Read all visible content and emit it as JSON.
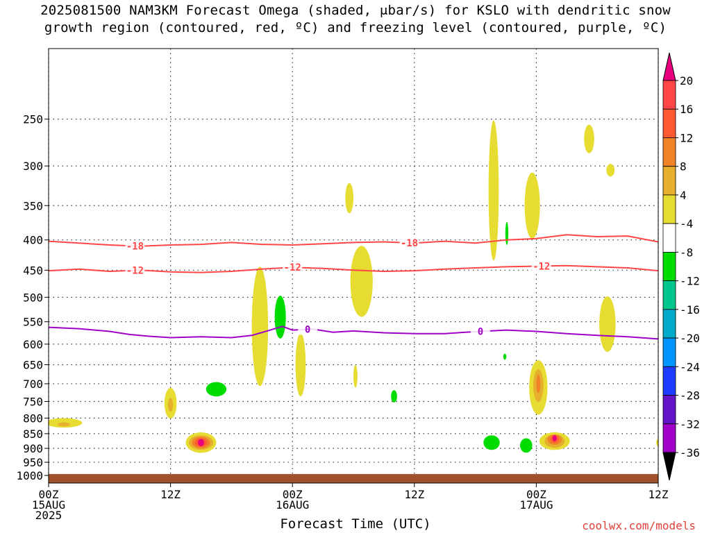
{
  "chart_data": {
    "type": "heatmap",
    "title": "2025081500 NAM3KM Forecast Omega (shaded, μbar/s) for KSLO with dendritic snow",
    "subtitle": "growth region (contoured, red, ºC) and freezing level (contoured, purple, ºC)",
    "xlabel": "Forecast Time (UTC)",
    "ylabel": "",
    "xlim": [
      0,
      60
    ],
    "ylim": [
      1030,
      190
    ],
    "y_scale": "log-pressure",
    "grid": true,
    "x_ticks": [
      {
        "hour": 0,
        "lines": [
          "00Z",
          "15AUG",
          "2025"
        ]
      },
      {
        "hour": 12,
        "lines": [
          "12Z"
        ]
      },
      {
        "hour": 24,
        "lines": [
          "00Z",
          "16AUG"
        ]
      },
      {
        "hour": 36,
        "lines": [
          "12Z"
        ]
      },
      {
        "hour": 48,
        "lines": [
          "00Z",
          "17AUG"
        ]
      },
      {
        "hour": 60,
        "lines": [
          "12Z"
        ]
      }
    ],
    "y_ticks": [
      250,
      300,
      350,
      400,
      450,
      500,
      550,
      600,
      650,
      700,
      750,
      800,
      850,
      900,
      950,
      1000
    ],
    "colorbar": {
      "labels": [
        "20",
        "16",
        "12",
        "8",
        "4",
        "-4",
        "-8",
        "-12",
        "-16",
        "-20",
        "-24",
        "-28",
        "-32",
        "-36"
      ],
      "colors": [
        "#e6007e",
        "#ff4646",
        "#ff5a32",
        "#f08228",
        "#e6af2d",
        "#e6dc32",
        "#ffffff",
        "#00dc00",
        "#00c88c",
        "#00aac8",
        "#0096ff",
        "#1e3cff",
        "#6414c8",
        "#a000c8",
        "#9e9e9e",
        "#000000"
      ]
    },
    "contours": [
      {
        "label": "-18",
        "color": "#ff4646",
        "points": [
          [
            0,
            402
          ],
          [
            3,
            405
          ],
          [
            6,
            408
          ],
          [
            9,
            410
          ],
          [
            12,
            408
          ],
          [
            15,
            407
          ],
          [
            18,
            404
          ],
          [
            21,
            407
          ],
          [
            24,
            408
          ],
          [
            27,
            406
          ],
          [
            30,
            404
          ],
          [
            33,
            403
          ],
          [
            36,
            405
          ],
          [
            39,
            402
          ],
          [
            42,
            405
          ],
          [
            45,
            400
          ],
          [
            48,
            398
          ],
          [
            51,
            392
          ],
          [
            54,
            395
          ],
          [
            57,
            394
          ],
          [
            60,
            403
          ]
        ],
        "label_positions": [
          8.5,
          35.5
        ]
      },
      {
        "label": "-12",
        "color": "#ff4646",
        "points": [
          [
            0,
            451
          ],
          [
            3,
            448
          ],
          [
            6,
            452
          ],
          [
            9,
            450
          ],
          [
            12,
            453
          ],
          [
            15,
            454
          ],
          [
            18,
            452
          ],
          [
            21,
            448
          ],
          [
            24,
            445
          ],
          [
            27,
            447
          ],
          [
            30,
            450
          ],
          [
            33,
            452
          ],
          [
            36,
            451
          ],
          [
            39,
            448
          ],
          [
            42,
            446
          ],
          [
            45,
            444
          ],
          [
            48,
            443
          ],
          [
            51,
            442
          ],
          [
            54,
            444
          ],
          [
            57,
            446
          ],
          [
            60,
            451
          ]
        ],
        "label_positions": [
          8.5,
          24,
          48.5
        ]
      },
      {
        "label": "0",
        "color": "#a000c8",
        "points": [
          [
            0,
            562
          ],
          [
            3,
            565
          ],
          [
            6,
            571
          ],
          [
            8,
            578
          ],
          [
            10,
            582
          ],
          [
            12,
            585
          ],
          [
            15,
            583
          ],
          [
            18,
            585
          ],
          [
            20,
            580
          ],
          [
            21.5,
            570
          ],
          [
            23,
            560
          ],
          [
            24,
            568
          ],
          [
            26,
            566
          ],
          [
            28,
            573
          ],
          [
            30,
            570
          ],
          [
            33,
            574
          ],
          [
            36,
            576
          ],
          [
            39,
            576
          ],
          [
            41,
            573
          ],
          [
            45,
            568
          ],
          [
            48,
            571
          ],
          [
            51,
            576
          ],
          [
            54,
            580
          ],
          [
            57,
            583
          ],
          [
            60,
            588
          ]
        ],
        "label_positions": [
          25.5,
          42.5
        ]
      }
    ],
    "omega_regions": [
      {
        "x": 1.5,
        "p": 815,
        "w": 3.6,
        "h": 30,
        "level": "4"
      },
      {
        "x": 1.5,
        "p": 820,
        "w": 1.2,
        "h": 12,
        "level": "8"
      },
      {
        "x": 12,
        "p": 755,
        "w": 1.2,
        "h": 90,
        "level": "4"
      },
      {
        "x": 12,
        "p": 760,
        "w": 0.5,
        "h": 40,
        "level": "8"
      },
      {
        "x": 15,
        "p": 880,
        "w": 3.0,
        "h": 70,
        "level": "4"
      },
      {
        "x": 15,
        "p": 880,
        "w": 2.4,
        "h": 50,
        "level": "8"
      },
      {
        "x": 15,
        "p": 880,
        "w": 1.8,
        "h": 40,
        "level": "12"
      },
      {
        "x": 15,
        "p": 880,
        "w": 1.2,
        "h": 30,
        "level": "16"
      },
      {
        "x": 15,
        "p": 880,
        "w": 0.6,
        "h": 25,
        "level": "20"
      },
      {
        "x": 16.5,
        "p": 715,
        "w": 2.0,
        "h": 40,
        "level": "-4"
      },
      {
        "x": 20.8,
        "p": 560,
        "w": 1.6,
        "h": 260,
        "level": "4"
      },
      {
        "x": 22.8,
        "p": 540,
        "w": 1.1,
        "h": 90,
        "level": "-4"
      },
      {
        "x": 24.8,
        "p": 650,
        "w": 1.0,
        "h": 160,
        "level": "4"
      },
      {
        "x": 29.6,
        "p": 340,
        "w": 0.8,
        "h": 40,
        "level": "4"
      },
      {
        "x": 30.8,
        "p": 470,
        "w": 2.2,
        "h": 130,
        "level": "4"
      },
      {
        "x": 30.2,
        "p": 680,
        "w": 0.4,
        "h": 60,
        "level": "4"
      },
      {
        "x": 34,
        "p": 735,
        "w": 0.6,
        "h": 35,
        "level": "-4"
      },
      {
        "x": 43.8,
        "p": 330,
        "w": 1.0,
        "h": 180,
        "level": "4"
      },
      {
        "x": 43.6,
        "p": 880,
        "w": 1.6,
        "h": 50,
        "level": "-4"
      },
      {
        "x": 44.9,
        "p": 630,
        "w": 0.3,
        "h": 15,
        "level": "-4"
      },
      {
        "x": 45.1,
        "p": 390,
        "w": 0.3,
        "h": 35,
        "level": "-4"
      },
      {
        "x": 47.6,
        "p": 350,
        "w": 1.5,
        "h": 90,
        "level": "4"
      },
      {
        "x": 48.2,
        "p": 710,
        "w": 1.8,
        "h": 150,
        "level": "4"
      },
      {
        "x": 48.2,
        "p": 705,
        "w": 1.0,
        "h": 90,
        "level": "8"
      },
      {
        "x": 48.2,
        "p": 700,
        "w": 0.4,
        "h": 50,
        "level": "12"
      },
      {
        "x": 49.8,
        "p": 875,
        "w": 3.0,
        "h": 60,
        "level": "4"
      },
      {
        "x": 49.8,
        "p": 875,
        "w": 2.0,
        "h": 45,
        "level": "8"
      },
      {
        "x": 49.8,
        "p": 870,
        "w": 1.4,
        "h": 35,
        "level": "12"
      },
      {
        "x": 49.8,
        "p": 868,
        "w": 0.8,
        "h": 25,
        "level": "16"
      },
      {
        "x": 49.8,
        "p": 865,
        "w": 0.4,
        "h": 20,
        "level": "20"
      },
      {
        "x": 47.0,
        "p": 890,
        "w": 1.2,
        "h": 50,
        "level": "-4"
      },
      {
        "x": 53.2,
        "p": 270,
        "w": 1.0,
        "h": 30,
        "level": "4"
      },
      {
        "x": 55.3,
        "p": 305,
        "w": 0.8,
        "h": 15,
        "level": "4"
      },
      {
        "x": 55.0,
        "p": 555,
        "w": 1.6,
        "h": 120,
        "level": "4"
      },
      {
        "x": 60,
        "p": 880,
        "w": 0.4,
        "h": 25,
        "level": "4"
      }
    ],
    "surface": {
      "label": "",
      "color": "#a0522d"
    }
  },
  "credit": "coolwx.com/models"
}
